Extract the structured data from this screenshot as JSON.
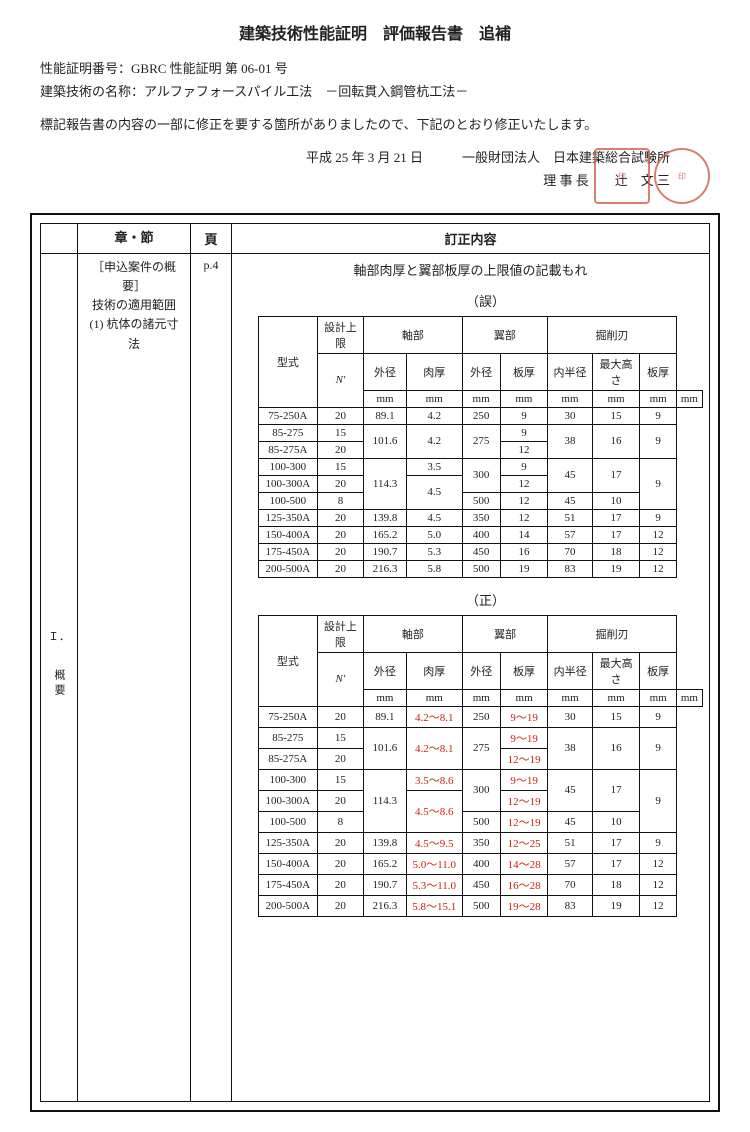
{
  "header": {
    "title": "建築技術性能証明　評価報告書　追補",
    "cert_label": "性能証明番号：",
    "cert_value": "GBRC 性能証明 第 06-01 号",
    "tech_label": "建築技術の名称：",
    "tech_value": "アルファフォースパイル工法　－回転貫入鋼管杭工法－",
    "notice": "標記報告書の内容の一部に修正を要する箇所がありましたので、下記のとおり修正いたします。",
    "date": "平成 25 年 3 月 21 日",
    "institution": "一般財団法人　日本建築総合試験所",
    "director_label": "理 事 長",
    "director_name": "辻　文 三"
  },
  "columns": {
    "chapter": "章・節",
    "page": "頁",
    "correction": "訂正内容"
  },
  "section": {
    "roman": "Ｉ．",
    "label": "概要",
    "chapter_text": "［申込案件の概要］\n技術の適用範囲\n(1) 杭体の諸元寸法",
    "page": "p.4",
    "desc": "軸部肉厚と翼部板厚の上限値の記載もれ",
    "incorrect": "（誤）",
    "correct": "（正）"
  },
  "table_headers": {
    "model": "型式",
    "limit": "設計上限",
    "nbar": "N'",
    "jiku": "軸部",
    "tsubasa": "翼部",
    "kussaku": "掘削刃",
    "gaikei": "外径",
    "nikuatsu": "肉厚",
    "itaatsu": "板厚",
    "naihankei": "内半径",
    "saidaitakasa": "最大高さ",
    "mm": "mm"
  },
  "rows_old": [
    {
      "model": "75-250A",
      "n": "20",
      "jg": "89.1",
      "jn": "4.2",
      "tg": "250",
      "ti": "9",
      "kn": "30",
      "km": "15",
      "ki": "9"
    },
    {
      "model": "85-275",
      "n": "15",
      "jg": "101.6",
      "jn": "4.2",
      "tg": "275",
      "ti": "9",
      "kn": "38",
      "km": "16",
      "ki": "9"
    },
    {
      "model": "85-275A",
      "n": "20",
      "jg": "",
      "jn": "",
      "tg": "",
      "ti": "12",
      "kn": "",
      "km": "",
      "ki": ""
    },
    {
      "model": "100-300",
      "n": "15",
      "jg": "114.3",
      "jn": "3.5",
      "tg": "300",
      "ti": "9",
      "kn": "45",
      "km": "17",
      "ki": "9"
    },
    {
      "model": "100-300A",
      "n": "20",
      "jg": "",
      "jn": "4.5",
      "tg": "",
      "ti": "12",
      "kn": "",
      "km": "",
      "ki": ""
    },
    {
      "model": "100-500",
      "n": "8",
      "jg": "",
      "jn": "",
      "tg": "500",
      "ti": "12",
      "kn": "45",
      "km": "10",
      "ki": ""
    },
    {
      "model": "125-350A",
      "n": "20",
      "jg": "139.8",
      "jn": "4.5",
      "tg": "350",
      "ti": "12",
      "kn": "51",
      "km": "17",
      "ki": "9"
    },
    {
      "model": "150-400A",
      "n": "20",
      "jg": "165.2",
      "jn": "5.0",
      "tg": "400",
      "ti": "14",
      "kn": "57",
      "km": "17",
      "ki": "12"
    },
    {
      "model": "175-450A",
      "n": "20",
      "jg": "190.7",
      "jn": "5.3",
      "tg": "450",
      "ti": "16",
      "kn": "70",
      "km": "18",
      "ki": "12"
    },
    {
      "model": "200-500A",
      "n": "20",
      "jg": "216.3",
      "jn": "5.8",
      "tg": "500",
      "ti": "19",
      "kn": "83",
      "km": "19",
      "ki": "12"
    }
  ],
  "rows_new": [
    {
      "model": "75-250A",
      "n": "20",
      "jg": "89.1",
      "jn": "4.2～8.1",
      "tg": "250",
      "ti": "9～19",
      "kn": "30",
      "km": "15",
      "ki": "9"
    },
    {
      "model": "85-275",
      "n": "15",
      "jg": "101.6",
      "jn": "4.2～8.1",
      "tg": "275",
      "ti": "9～19",
      "kn": "38",
      "km": "16",
      "ki": "9"
    },
    {
      "model": "85-275A",
      "n": "20",
      "jg": "",
      "jn": "",
      "tg": "",
      "ti": "12～19",
      "kn": "",
      "km": "",
      "ki": ""
    },
    {
      "model": "100-300",
      "n": "15",
      "jg": "114.3",
      "jn": "3.5～8.6",
      "tg": "300",
      "ti": "9～19",
      "kn": "45",
      "km": "17",
      "ki": "9"
    },
    {
      "model": "100-300A",
      "n": "20",
      "jg": "",
      "jn": "4.5～8.6",
      "tg": "",
      "ti": "12～19",
      "kn": "",
      "km": "",
      "ki": ""
    },
    {
      "model": "100-500",
      "n": "8",
      "jg": "",
      "jn": "",
      "tg": "500",
      "ti": "12～19",
      "kn": "45",
      "km": "10",
      "ki": ""
    },
    {
      "model": "125-350A",
      "n": "20",
      "jg": "139.8",
      "jn": "4.5～9.5",
      "tg": "350",
      "ti": "12～25",
      "kn": "51",
      "km": "17",
      "ki": "9"
    },
    {
      "model": "150-400A",
      "n": "20",
      "jg": "165.2",
      "jn": "5.0～11.0",
      "tg": "400",
      "ti": "14～28",
      "kn": "57",
      "km": "17",
      "ki": "12"
    },
    {
      "model": "175-450A",
      "n": "20",
      "jg": "190.7",
      "jn": "5.3～11.0",
      "tg": "450",
      "ti": "16～28",
      "kn": "70",
      "km": "18",
      "ki": "12"
    },
    {
      "model": "200-500A",
      "n": "20",
      "jg": "216.3",
      "jn": "5.8～15.1",
      "tg": "500",
      "ti": "19～28",
      "kn": "83",
      "km": "19",
      "ki": "12"
    }
  ]
}
